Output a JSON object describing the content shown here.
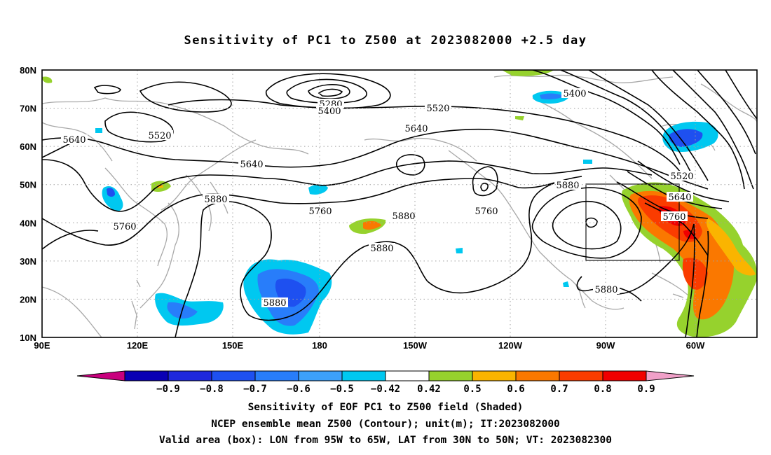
{
  "title": "Sensitivity of PC1 to Z500 at 2023082000 +2.5 day",
  "lat_labels": [
    "80N",
    "70N",
    "60N",
    "50N",
    "40N",
    "30N",
    "20N",
    "10N"
  ],
  "lon_labels": [
    "90E",
    "120E",
    "150E",
    "180",
    "150W",
    "120W",
    "90W",
    "60W"
  ],
  "contour_labels": [
    {
      "text": "5280"
    },
    {
      "text": "5400"
    },
    {
      "text": "5520"
    },
    {
      "text": "5400"
    },
    {
      "text": "5640"
    },
    {
      "text": "5520"
    },
    {
      "text": "5640"
    },
    {
      "text": "5520"
    },
    {
      "text": "5640"
    },
    {
      "text": "5640"
    },
    {
      "text": "5880"
    },
    {
      "text": "5760"
    },
    {
      "text": "5880"
    },
    {
      "text": "5760"
    },
    {
      "text": "5760"
    },
    {
      "text": "5760"
    },
    {
      "text": "5880"
    },
    {
      "text": "5880"
    },
    {
      "text": "5880"
    },
    {
      "text": "5880"
    }
  ],
  "colorbar": {
    "labels": [
      "-0.9",
      "-0.8",
      "-0.7",
      "-0.6",
      "-0.5",
      "-0.42",
      "0.42",
      "0.5",
      "0.6",
      "0.7",
      "0.8",
      "0.9"
    ],
    "colors": [
      "#c8007d",
      "#0a00b4",
      "#1e28dc",
      "#1e50f0",
      "#287dfa",
      "#3ca0fa",
      "#00c8f0",
      "#ffffff",
      "#96d22d",
      "#fab400",
      "#fa7800",
      "#fa3c00",
      "#f00000",
      "#f0a0c8"
    ]
  },
  "valid_box": {
    "lon_min_deg_w": 95,
    "lon_max_deg_w": 65,
    "lat_min": 30,
    "lat_max": 50
  },
  "captions": [
    "Sensitivity of EOF PC1 to Z500 field (Shaded)",
    "NCEP ensemble mean Z500 (Contour); unit(m); IT:2023082000",
    "Valid area (box): LON from 95W to 65W, LAT from 30N to 50N; VT: 2023082300"
  ]
}
